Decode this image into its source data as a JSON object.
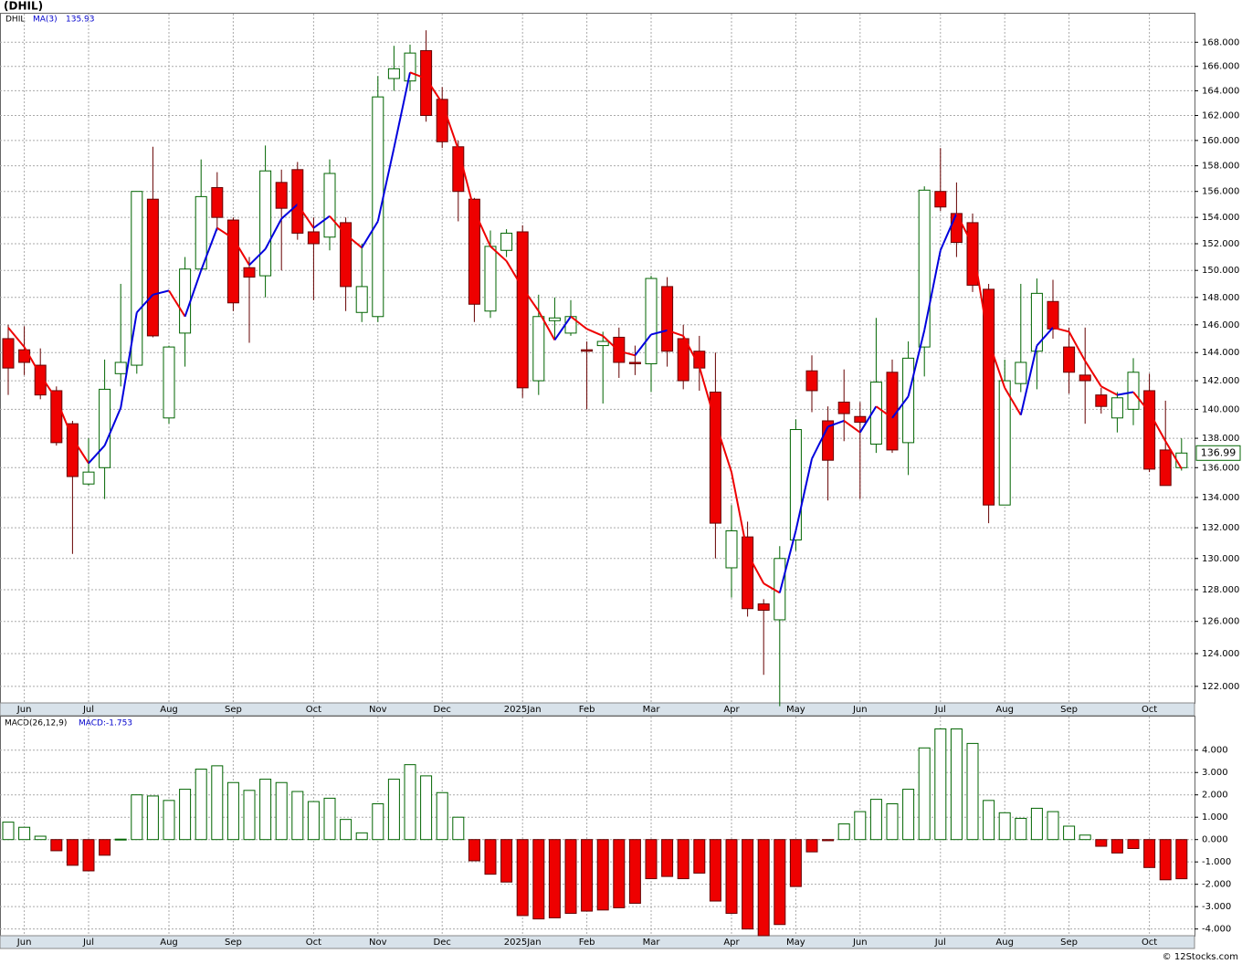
{
  "header": {
    "title": "(DHIL)",
    "credit": "© 12Stocks.com"
  },
  "chart_data": [
    {
      "type": "candlestick",
      "symbol": "DHIL",
      "ma_name": "MA(3)",
      "ma_last": "135.93",
      "log_scale": true,
      "grid": true,
      "categories": [
        null,
        "Jun",
        null,
        null,
        null,
        "Jul",
        null,
        null,
        null,
        null,
        "Aug",
        null,
        null,
        null,
        "Sep",
        null,
        null,
        null,
        null,
        "Oct",
        null,
        null,
        null,
        "Nov",
        null,
        null,
        null,
        "Dec",
        null,
        null,
        null,
        null,
        "2025Jan",
        null,
        null,
        null,
        "Feb",
        null,
        null,
        null,
        "Mar",
        null,
        null,
        null,
        null,
        "Apr",
        null,
        null,
        null,
        "May",
        null,
        null,
        null,
        "Jun",
        null,
        null,
        null,
        null,
        "Jul",
        null,
        null,
        null,
        "Aug",
        null,
        null,
        null,
        "Sep",
        null,
        null,
        null,
        null,
        "Oct",
        null,
        null
      ],
      "open": [
        145,
        144.2,
        143.1,
        141.3,
        139,
        134.9,
        136,
        142.5,
        143.1,
        155.4,
        139.4,
        145.4,
        150.1,
        156.3,
        153.8,
        150.2,
        149.6,
        156.7,
        157.7,
        152.9,
        152.5,
        153.6,
        146.9,
        146.6,
        165,
        164.8,
        167.3,
        163.3,
        159.5,
        155.4,
        147,
        151.5,
        152.9,
        142,
        146.3,
        145.4,
        144.2,
        144.5,
        145.1,
        143.3,
        143.2,
        148.8,
        145,
        144.1,
        141.2,
        129.4,
        131.4,
        127.1,
        126.1,
        131.2,
        142.7,
        139.2,
        140.5,
        139.5,
        137.6,
        142.6,
        137.7,
        144.4,
        156,
        154.3,
        153.6,
        148.6,
        133.5,
        141.8,
        144.1,
        147.7,
        144.4,
        142.4,
        141,
        139.4,
        140,
        141.3,
        137.2,
        136
      ],
      "high": [
        146,
        145.9,
        144.3,
        141.6,
        139.2,
        138,
        143.5,
        149,
        156,
        159.5,
        144.5,
        151,
        158.5,
        157.5,
        154,
        151,
        159.6,
        157.7,
        158.3,
        154,
        158.5,
        154,
        152,
        165.2,
        167.7,
        167.8,
        169,
        164.3,
        160,
        155.5,
        153,
        153.1,
        153.4,
        148.2,
        148,
        147.8,
        144.8,
        145.5,
        145.8,
        144.5,
        149.6,
        149.5,
        146,
        145.2,
        144,
        133.5,
        132.4,
        127.4,
        130.8,
        139.3,
        143.8,
        140.2,
        142.8,
        140.5,
        146.5,
        143.5,
        144.8,
        156.4,
        159.4,
        156.7,
        154.3,
        149,
        143.5,
        149,
        149.4,
        149.3,
        145.8,
        145.8,
        141.5,
        141.2,
        143.6,
        142.5,
        140.6,
        138
      ],
      "low": [
        141,
        142.4,
        140.7,
        137.5,
        130.3,
        134.8,
        133.9,
        141.6,
        142.5,
        145.1,
        139,
        143,
        150,
        153,
        147,
        144.7,
        148,
        150,
        152.3,
        147.8,
        151.5,
        147,
        146.2,
        146.2,
        164,
        164,
        161.5,
        159.4,
        153.7,
        146.2,
        146.5,
        151,
        140.8,
        141,
        145,
        145.2,
        140,
        140.4,
        142.2,
        142.4,
        141.2,
        143,
        141.4,
        141.3,
        130,
        127.5,
        126.3,
        122.7,
        120.8,
        130.5,
        139.8,
        133.8,
        137.8,
        133.9,
        137,
        137,
        135.5,
        142.3,
        154.5,
        151,
        148.4,
        132.3,
        133.5,
        141.2,
        141.4,
        145,
        141.1,
        139,
        139.7,
        138.4,
        138.9,
        135.7,
        134.8,
        135.8
      ],
      "close": [
        142.9,
        143.3,
        141,
        137.7,
        135.4,
        135.7,
        141.4,
        143.3,
        156,
        145.2,
        144.4,
        150.1,
        155.6,
        154,
        147.6,
        149.5,
        157.6,
        154.7,
        152.8,
        152,
        157.4,
        148.8,
        148.8,
        163.5,
        165.8,
        167.1,
        162,
        159.9,
        156,
        147.5,
        151.8,
        152.8,
        141.5,
        146.6,
        146.5,
        146.6,
        144.1,
        144.8,
        143.3,
        143.2,
        149.4,
        144.1,
        142,
        142.9,
        132.3,
        131.8,
        126.8,
        126.7,
        130,
        138.6,
        141.3,
        136.5,
        139.7,
        139.1,
        141.9,
        137.2,
        143.6,
        156.1,
        154.8,
        152.1,
        148.9,
        133.5,
        142,
        143.3,
        148.3,
        145.7,
        142.6,
        142,
        140.2,
        140.8,
        142.6,
        135.9,
        134.8,
        136.99
      ],
      "ma": [
        145.8,
        144.4,
        142.4,
        140.7,
        138,
        136.3,
        137.5,
        140.1,
        146.9,
        148.2,
        148.5,
        146.6,
        150,
        153.2,
        152.4,
        150.4,
        151.6,
        153.9,
        155,
        153.2,
        154.1,
        152.7,
        151.7,
        153.7,
        159.4,
        165.5,
        165,
        163,
        159.3,
        154.5,
        151.8,
        150.7,
        148.7,
        147,
        144.9,
        146.6,
        145.7,
        145.2,
        144.1,
        143.8,
        145.3,
        145.6,
        145.2,
        143,
        139.1,
        135.7,
        130.3,
        128.4,
        127.8,
        131.8,
        136.6,
        138.8,
        139.2,
        138.4,
        140.2,
        139.4,
        140.9,
        145.6,
        151.5,
        154.3,
        151.9,
        144.8,
        141.5,
        139.6,
        144.5,
        145.8,
        145.5,
        143.4,
        141.6,
        141,
        141.2,
        139.8,
        137.8,
        135.93
      ],
      "up_color": "#006400",
      "down_color": "#ee0000",
      "ma_up_color": "#0000dd",
      "ma_down_color": "#ee0000",
      "ylim": [
        121,
        170.4
      ],
      "yticks": [
        {
          "value": 122,
          "label": "122.000"
        },
        {
          "value": 124,
          "label": "124.000"
        },
        {
          "value": 126,
          "label": "126.000"
        },
        {
          "value": 128,
          "label": "128.000"
        },
        {
          "value": 130,
          "label": "130.000"
        },
        {
          "value": 132,
          "label": "132.000"
        },
        {
          "value": 134,
          "label": "134.000"
        },
        {
          "value": 136,
          "label": "136.000"
        },
        {
          "value": 138,
          "label": "138.000"
        },
        {
          "value": 140,
          "label": "140.000"
        },
        {
          "value": 142,
          "label": "142.000"
        },
        {
          "value": 144,
          "label": "144.000"
        },
        {
          "value": 146,
          "label": "146.000"
        },
        {
          "value": 148,
          "label": "148.000"
        },
        {
          "value": 150,
          "label": "150.000"
        },
        {
          "value": 152,
          "label": "152.000"
        },
        {
          "value": 154,
          "label": "154.000"
        },
        {
          "value": 156,
          "label": "156.000"
        },
        {
          "value": 158,
          "label": "158.000"
        },
        {
          "value": 160,
          "label": "160.000"
        },
        {
          "value": 162,
          "label": "162.000"
        },
        {
          "value": 164,
          "label": "164.000"
        },
        {
          "value": 166,
          "label": "166.000"
        },
        {
          "value": 168,
          "label": "168.000"
        }
      ]
    },
    {
      "type": "bar",
      "name": "MACD(26,12,9)",
      "last_label": "MACD:-1.753",
      "grid": true,
      "values": [
        0.78,
        0.55,
        0.15,
        -0.5,
        -1.15,
        -1.4,
        -0.7,
        0.02,
        2,
        1.95,
        1.75,
        2.25,
        3.15,
        3.3,
        2.55,
        2.2,
        2.7,
        2.55,
        2.15,
        1.7,
        1.85,
        0.9,
        0.3,
        1.6,
        2.7,
        3.35,
        2.85,
        2.1,
        1,
        -0.95,
        -1.55,
        -1.9,
        -3.4,
        -3.55,
        -3.5,
        -3.3,
        -3.2,
        -3.15,
        -3.05,
        -2.85,
        -1.75,
        -1.65,
        -1.75,
        -1.5,
        -2.75,
        -3.3,
        -4,
        -4.3,
        -3.8,
        -2.1,
        -0.55,
        -0.05,
        0.7,
        1.25,
        1.8,
        1.6,
        2.25,
        4.1,
        4.95,
        4.95,
        4.3,
        1.75,
        1.2,
        0.95,
        1.4,
        1.25,
        0.6,
        0.2,
        -0.3,
        -0.6,
        -0.4,
        -1.25,
        -1.8,
        -1.753
      ],
      "pos_color": "#006400",
      "neg_color": "#ee0000",
      "ylim": [
        -4.3,
        5.5
      ],
      "yticks": [
        {
          "value": -4,
          "label": "-4.000"
        },
        {
          "value": -3,
          "label": "-3.000"
        },
        {
          "value": -2,
          "label": "-2.000"
        },
        {
          "value": -1,
          "label": "-1.000"
        },
        {
          "value": 0,
          "label": "0.000"
        },
        {
          "value": 1,
          "label": "1.000"
        },
        {
          "value": 2,
          "label": "2.000"
        },
        {
          "value": 3,
          "label": "3.000"
        },
        {
          "value": 4,
          "label": "4.000"
        }
      ]
    }
  ]
}
